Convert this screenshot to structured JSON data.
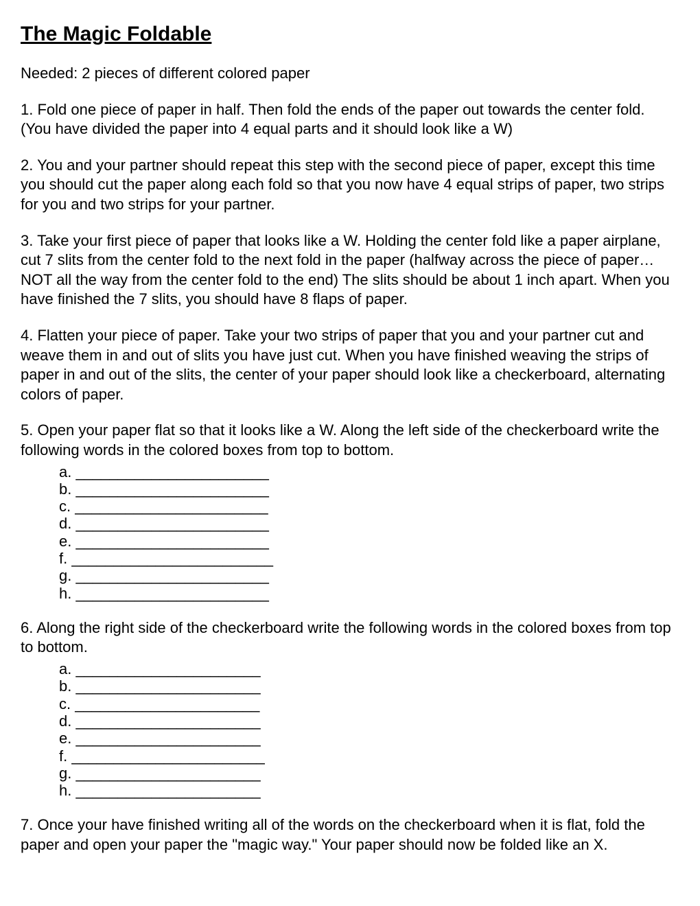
{
  "title": "The Magic Foldable",
  "intro": "Needed: 2 pieces of different colored paper",
  "steps": {
    "s1": "1. Fold one piece of paper in half. Then fold the ends of the paper out towards the center fold. (You have divided the paper into 4 equal parts and it should look like a W)",
    "s2": "2. You and your partner should repeat this step with the second piece of paper, except this time you should cut the paper along each fold so that you now have 4 equal strips of paper, two strips for you and two strips for your partner.",
    "s3": "3. Take your first piece of paper that looks like a W. Holding the center fold like a paper airplane, cut 7 slits from the center fold to the next fold in the paper (halfway across the piece of paper…NOT all the way from the center fold to the end) The slits should be about 1 inch apart. When you have finished the 7 slits, you should have 8 flaps of paper.",
    "s4": "4. Flatten your piece of paper. Take your two strips of paper that you and your partner cut and weave them in and out of slits you have just cut. When you have finished weaving the strips of paper in and out of the slits, the center of your paper should look like a checkerboard, alternating colors of paper.",
    "s5": "5. Open your paper flat so that it looks like a W. Along the left side of the checkerboard write the following words in the colored boxes from top to bottom.",
    "s6": "6. Along the right side of the checkerboard write the following words in the colored boxes from top to bottom.",
    "s7": "7. Once your have finished writing all of the words on the checkerboard when it is flat, fold the paper and open your paper the \"magic way.\" Your paper should now be folded like an X."
  },
  "sublist5": {
    "a": "a. _______________________",
    "b": "b. _______________________",
    "c": "c. _______________________",
    "d": "d. _______________________",
    "e": "e. _______________________",
    "f": "f. ________________________",
    "g": "g. _______________________",
    "h": "h. _______________________"
  },
  "sublist6": {
    "a": "a. ______________________",
    "b": "b. ______________________",
    "c": "c. ______________________",
    "d": "d. ______________________",
    "e": "e. ______________________",
    "f": "f. _______________________",
    "g": "g. ______________________",
    "h": "h. ______________________"
  }
}
